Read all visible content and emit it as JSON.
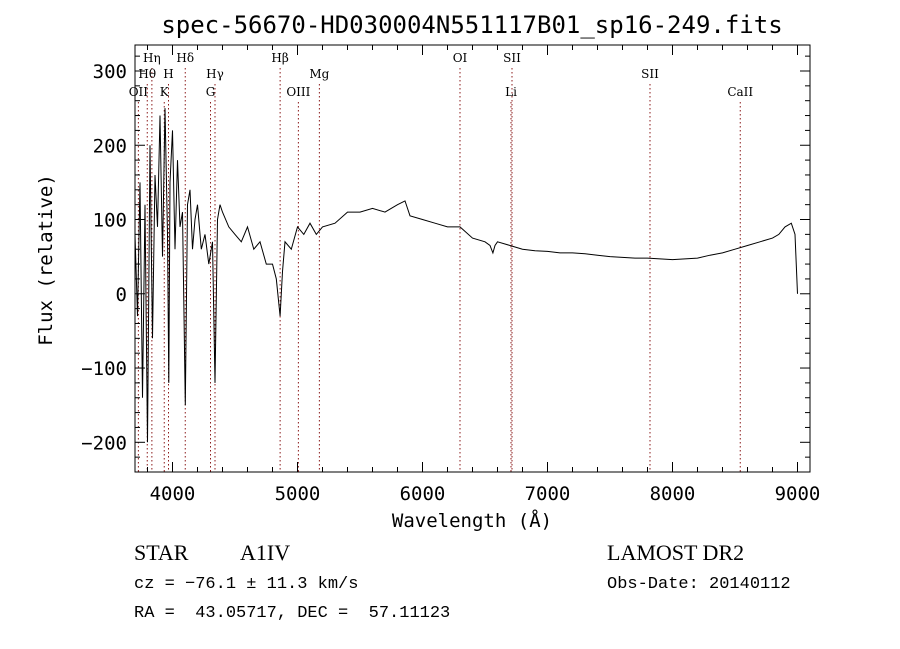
{
  "chart_data": {
    "type": "line",
    "title": "spec-56670-HD030004N551117B01_sp16-249.fits",
    "xlabel": "Wavelength (Å)",
    "ylabel": "Flux (relative)",
    "xlim": [
      3700,
      9100
    ],
    "ylim": [
      -240,
      335
    ],
    "xticks": [
      4000,
      5000,
      6000,
      7000,
      8000,
      9000
    ],
    "yticks": [
      -200,
      -100,
      0,
      100,
      200,
      300
    ],
    "grid": false,
    "series": [
      {
        "x": [
          3700,
          3720,
          3740,
          3760,
          3780,
          3800,
          3820,
          3840,
          3860,
          3880,
          3900,
          3920,
          3940,
          3960,
          3970,
          3980,
          4000,
          4020,
          4040,
          4060,
          4080,
          4102,
          4120,
          4140,
          4160,
          4180,
          4200,
          4230,
          4260,
          4290,
          4320,
          4340,
          4360,
          4380,
          4400,
          4450,
          4500,
          4550,
          4600,
          4650,
          4700,
          4750,
          4800,
          4830,
          4861,
          4880,
          4900,
          4950,
          5000,
          5050,
          5100,
          5150,
          5200,
          5300,
          5400,
          5500,
          5600,
          5700,
          5800,
          5860,
          5900,
          6000,
          6100,
          6200,
          6300,
          6400,
          6500,
          6540,
          6563,
          6580,
          6600,
          6700,
          6800,
          6900,
          7000,
          7100,
          7200,
          7300,
          7400,
          7500,
          7600,
          7700,
          7800,
          7900,
          8000,
          8100,
          8200,
          8300,
          8400,
          8500,
          8600,
          8700,
          8800,
          8850,
          8900,
          8950,
          8980,
          9000
        ],
        "y": [
          80,
          -30,
          150,
          -140,
          120,
          -200,
          200,
          -60,
          160,
          90,
          240,
          50,
          250,
          80,
          -120,
          150,
          220,
          60,
          180,
          90,
          110,
          -150,
          120,
          140,
          60,
          100,
          120,
          60,
          80,
          40,
          70,
          -120,
          100,
          120,
          110,
          90,
          80,
          70,
          90,
          60,
          70,
          40,
          40,
          20,
          -30,
          30,
          70,
          60,
          90,
          80,
          95,
          80,
          90,
          95,
          110,
          110,
          115,
          110,
          120,
          125,
          105,
          100,
          95,
          90,
          90,
          75,
          70,
          65,
          55,
          65,
          70,
          65,
          60,
          58,
          57,
          55,
          55,
          54,
          52,
          50,
          49,
          48,
          48,
          47,
          46,
          47,
          48,
          52,
          55,
          60,
          65,
          70,
          75,
          80,
          90,
          95,
          80,
          0
        ]
      }
    ],
    "line_marks": [
      {
        "name": "Hθ",
        "wavelength": 3798,
        "row": 2
      },
      {
        "name": "OII",
        "wavelength": 3727,
        "row": 3
      },
      {
        "name": "Hη",
        "wavelength": 3835,
        "row": 1
      },
      {
        "name": "H",
        "wavelength": 3968,
        "row": 2
      },
      {
        "name": "K",
        "wavelength": 3934,
        "row": 3
      },
      {
        "name": "Hδ",
        "wavelength": 4102,
        "row": 1
      },
      {
        "name": "Hγ",
        "wavelength": 4340,
        "row": 2
      },
      {
        "name": "G",
        "wavelength": 4304,
        "row": 3
      },
      {
        "name": "Hβ",
        "wavelength": 4861,
        "row": 1
      },
      {
        "name": "OIII",
        "wavelength": 5007,
        "row": 3
      },
      {
        "name": "Mg",
        "wavelength": 5175,
        "row": 2
      },
      {
        "name": "OI",
        "wavelength": 6300,
        "row": 1
      },
      {
        "name": "SII",
        "wavelength": 6716,
        "row": 1
      },
      {
        "name": "Li",
        "wavelength": 6708,
        "row": 3
      },
      {
        "name": "SII",
        "wavelength": 7820,
        "row": 2
      },
      {
        "name": "CaII",
        "wavelength": 8542,
        "row": 3
      }
    ]
  },
  "info": {
    "object_class": "STAR",
    "subclass": "A1IV",
    "cz": "cz = −76.1 ± 11.3 km/s",
    "radec": "RA =  43.05717, DEC =  57.11123",
    "survey": "LAMOST DR2",
    "obs_date": "Obs-Date: 20140112"
  },
  "colors": {
    "line_marker": "#8b1a1a",
    "spectrum": "#000000",
    "axis": "#000000"
  }
}
